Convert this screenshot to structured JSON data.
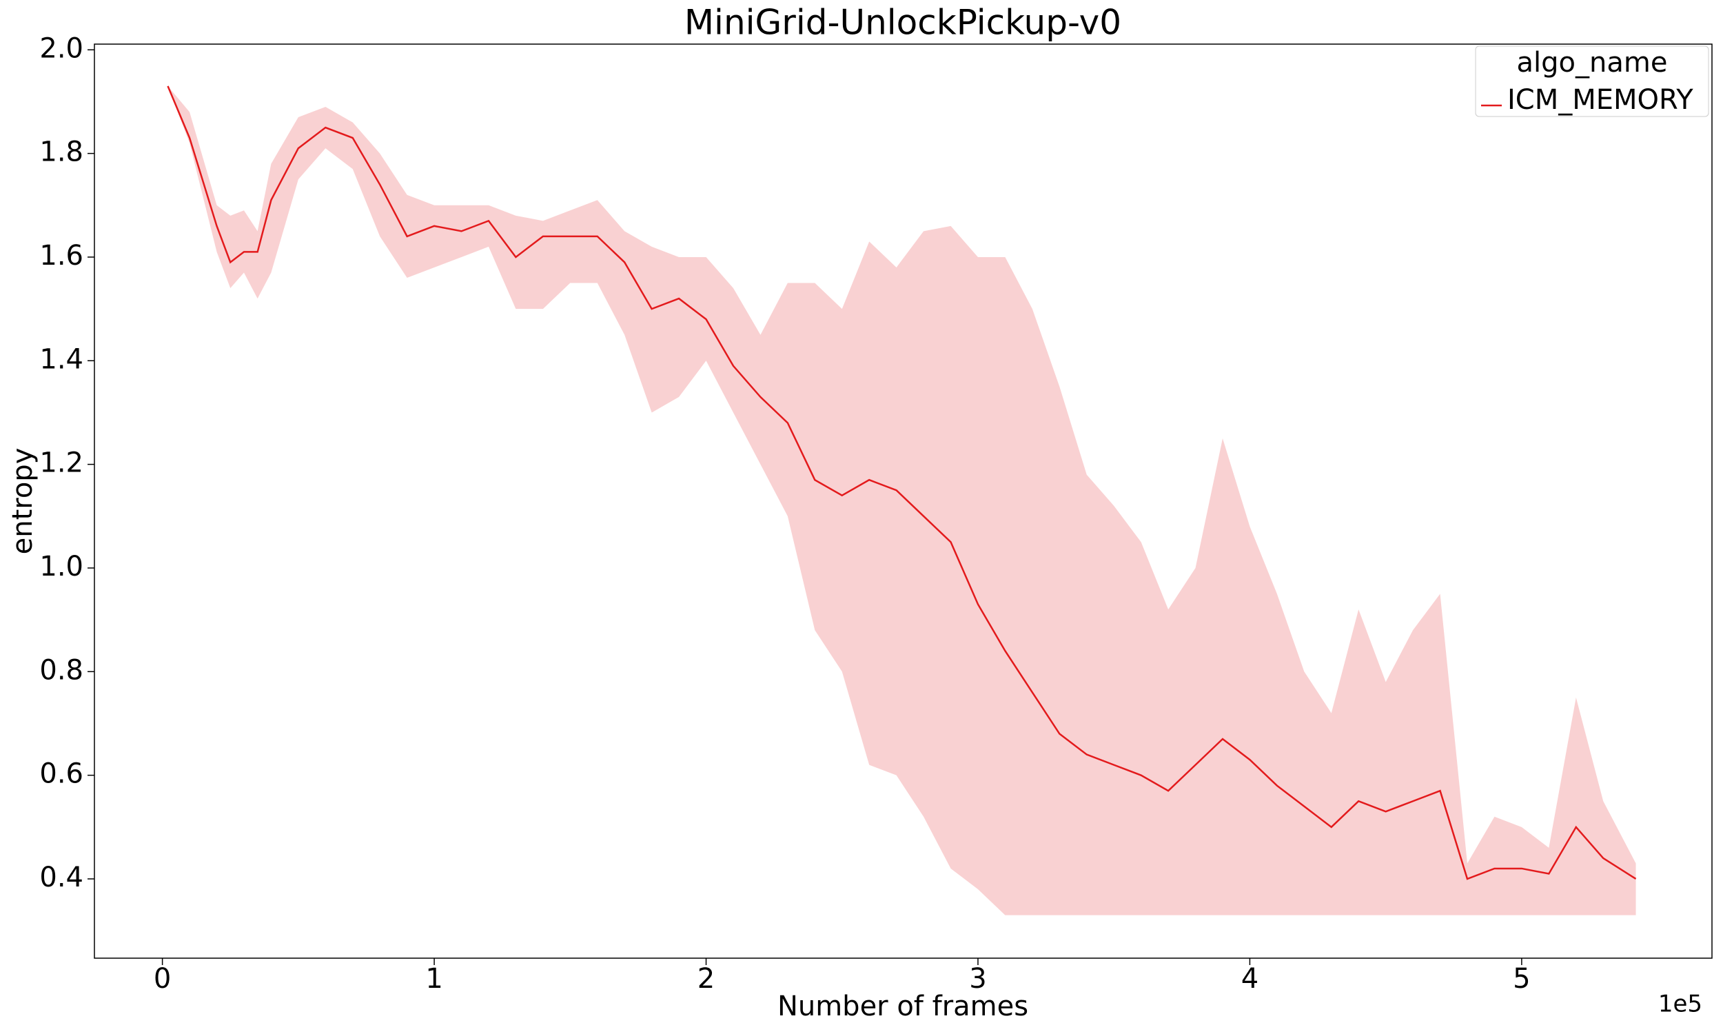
{
  "chart_data": {
    "type": "line",
    "title": "MiniGrid-UnlockPickup-v0",
    "x_label": "Number of frames",
    "y_label": "entropy",
    "x_offset_label": "1e5",
    "legend_title": "algo_name",
    "legend_position": "upper right",
    "x": [
      2000,
      10000,
      20000,
      25000,
      30000,
      35000,
      40000,
      50000,
      60000,
      70000,
      80000,
      90000,
      100000,
      110000,
      120000,
      130000,
      140000,
      150000,
      160000,
      170000,
      180000,
      190000,
      200000,
      210000,
      220000,
      230000,
      240000,
      250000,
      260000,
      270000,
      280000,
      290000,
      300000,
      310000,
      320000,
      330000,
      340000,
      350000,
      360000,
      370000,
      380000,
      390000,
      400000,
      410000,
      420000,
      430000,
      440000,
      450000,
      460000,
      470000,
      480000,
      490000,
      500000,
      510000,
      520000,
      530000,
      542000
    ],
    "series": [
      {
        "name": "ICM_MEMORY",
        "color": "#e31a1c",
        "values": [
          1.93,
          1.83,
          1.66,
          1.59,
          1.61,
          1.61,
          1.71,
          1.81,
          1.85,
          1.83,
          1.74,
          1.64,
          1.66,
          1.65,
          1.67,
          1.6,
          1.64,
          1.64,
          1.64,
          1.59,
          1.5,
          1.52,
          1.48,
          1.39,
          1.33,
          1.28,
          1.17,
          1.14,
          1.17,
          1.15,
          1.1,
          1.05,
          0.93,
          0.84,
          0.76,
          0.68,
          0.64,
          0.62,
          0.6,
          0.57,
          0.62,
          0.67,
          0.63,
          0.58,
          0.54,
          0.5,
          0.55,
          0.53,
          0.55,
          0.57,
          0.4,
          0.42,
          0.42,
          0.41,
          0.5,
          0.44,
          0.4
        ],
        "lower": [
          1.93,
          1.82,
          1.61,
          1.54,
          1.57,
          1.52,
          1.57,
          1.75,
          1.81,
          1.77,
          1.64,
          1.56,
          1.58,
          1.6,
          1.62,
          1.5,
          1.5,
          1.55,
          1.55,
          1.45,
          1.3,
          1.33,
          1.4,
          1.3,
          1.2,
          1.1,
          0.88,
          0.8,
          0.62,
          0.6,
          0.52,
          0.42,
          0.38,
          0.33,
          0.33,
          0.33,
          0.33,
          0.33,
          0.33,
          0.33,
          0.33,
          0.33,
          0.33,
          0.33,
          0.33,
          0.33,
          0.33,
          0.33,
          0.33,
          0.33,
          0.33,
          0.33,
          0.33,
          0.33,
          0.33,
          0.33,
          0.33
        ],
        "upper": [
          1.93,
          1.88,
          1.7,
          1.68,
          1.69,
          1.65,
          1.78,
          1.87,
          1.89,
          1.86,
          1.8,
          1.72,
          1.7,
          1.7,
          1.7,
          1.68,
          1.67,
          1.69,
          1.71,
          1.65,
          1.62,
          1.6,
          1.6,
          1.54,
          1.45,
          1.55,
          1.55,
          1.5,
          1.63,
          1.58,
          1.65,
          1.66,
          1.6,
          1.6,
          1.5,
          1.35,
          1.18,
          1.12,
          1.05,
          0.92,
          1.0,
          1.25,
          1.08,
          0.95,
          0.8,
          0.72,
          0.92,
          0.78,
          0.88,
          0.95,
          0.43,
          0.52,
          0.5,
          0.46,
          0.75,
          0.55,
          0.43
        ]
      }
    ],
    "xlim": [
      -25000,
      570000
    ],
    "ylim": [
      0.247,
      2.011
    ],
    "xticks": [
      {
        "value": 0,
        "label": "0"
      },
      {
        "value": 100000,
        "label": "1"
      },
      {
        "value": 200000,
        "label": "2"
      },
      {
        "value": 300000,
        "label": "3"
      },
      {
        "value": 400000,
        "label": "4"
      },
      {
        "value": 500000,
        "label": "5"
      }
    ],
    "yticks": [
      {
        "value": 0.4,
        "label": "0.4"
      },
      {
        "value": 0.6,
        "label": "0.6"
      },
      {
        "value": 0.8,
        "label": "0.8"
      },
      {
        "value": 1.0,
        "label": "1.0"
      },
      {
        "value": 1.2,
        "label": "1.2"
      },
      {
        "value": 1.4,
        "label": "1.4"
      },
      {
        "value": 1.6,
        "label": "1.6"
      },
      {
        "value": 1.8,
        "label": "1.8"
      },
      {
        "value": 2.0,
        "label": "2.0"
      }
    ],
    "grid": false
  }
}
